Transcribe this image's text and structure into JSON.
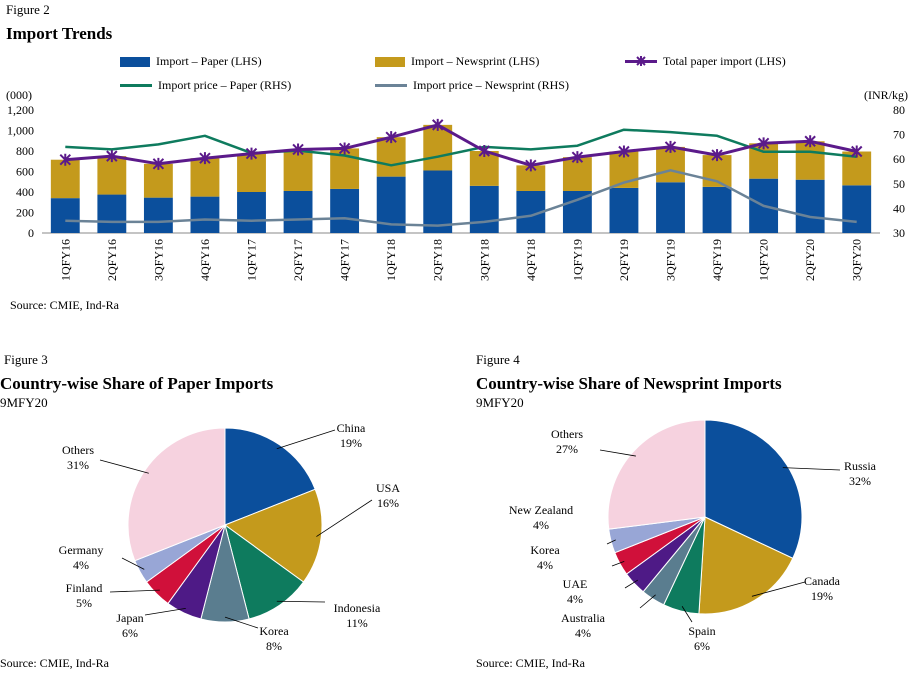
{
  "fig2": {
    "label": "Figure 2",
    "title": "Import Trends",
    "source": "Source: CMIE, Ind-Ra",
    "left_unit": "(000)",
    "right_unit": "(INR/kg)",
    "legend": {
      "paper": "Import – Paper (LHS)",
      "newsprint": "Import – Newsprint (LHS)",
      "total": "Total paper import (LHS)",
      "price_paper": "Import price – Paper (RHS)",
      "price_newsprint": "Import price – Newsprint (RHS)"
    }
  },
  "fig3": {
    "label": "Figure 3",
    "title": "Country-wise Share of Paper Imports",
    "subtitle": "9MFY20",
    "source": "Source: CMIE, Ind-Ra"
  },
  "fig4": {
    "label": "Figure 4",
    "title": "Country-wise Share of Newsprint Imports",
    "subtitle": "9MFY20",
    "source": "Source: CMIE, Ind-Ra"
  },
  "colors": {
    "paper": "#0b4f9c",
    "newsprint": "#c49a1c",
    "total": "#5b1a8a",
    "price_paper": "#0e7b5e",
    "price_newsprint": "#6b8397"
  },
  "chart_data": [
    {
      "type": "bar",
      "stacked": true,
      "categories": [
        "1QFY16",
        "2QFY16",
        "3QFY16",
        "4QFY16",
        "1QFY17",
        "2QFY17",
        "4QFY17",
        "1QFY18",
        "2QFY18",
        "3QFY18",
        "4QFY18",
        "1QFY19",
        "2QFY19",
        "3QFY19",
        "4QFY19",
        "1QFY20",
        "2QFY20",
        "3QFY20"
      ],
      "y_left": {
        "ticks": [
          "0",
          "200",
          "400",
          "600",
          "800",
          "1,000",
          "1,200"
        ],
        "range": [
          0,
          1200
        ]
      },
      "y_right": {
        "ticks": [
          "30",
          "40",
          "50",
          "60",
          "70",
          "80"
        ],
        "range": [
          30,
          80
        ]
      },
      "series": [
        {
          "name": "Import – Paper (LHS)",
          "kind": "bar",
          "axis": "left",
          "values": [
            340,
            375,
            345,
            355,
            400,
            410,
            430,
            550,
            610,
            460,
            410,
            410,
            440,
            495,
            450,
            530,
            520,
            465
          ]
        },
        {
          "name": "Import – Newsprint (LHS)",
          "kind": "bar",
          "axis": "left",
          "values": [
            375,
            375,
            330,
            375,
            375,
            405,
            395,
            385,
            445,
            340,
            250,
            330,
            355,
            345,
            310,
            345,
            375,
            330
          ]
        },
        {
          "name": "Total paper import (LHS)",
          "kind": "line-marker",
          "axis": "left",
          "values": [
            715,
            750,
            675,
            730,
            775,
            815,
            825,
            935,
            1055,
            800,
            660,
            740,
            795,
            840,
            760,
            875,
            895,
            795
          ]
        },
        {
          "name": "Import price – Paper (RHS)",
          "kind": "line",
          "axis": "right",
          "values": [
            65,
            64,
            66,
            69.5,
            62.5,
            63.5,
            61.5,
            57.5,
            61,
            65,
            64,
            65.5,
            72,
            71,
            69.5,
            63,
            63,
            61
          ]
        },
        {
          "name": "Import price – Newsprint (RHS)",
          "kind": "line",
          "axis": "right",
          "values": [
            35,
            34.5,
            34.5,
            35.5,
            35,
            35.5,
            36,
            33.5,
            33,
            34.5,
            37,
            43.5,
            50.5,
            55.5,
            51,
            41,
            36.5,
            34.5
          ]
        }
      ]
    },
    {
      "type": "pie",
      "title": "Country-wise Share of Paper Imports",
      "slices": [
        {
          "label": "China",
          "value": 19,
          "display": "19%",
          "color": "#0b4f9c"
        },
        {
          "label": "USA",
          "value": 16,
          "display": "16%",
          "color": "#c49a1c"
        },
        {
          "label": "Indonesia",
          "value": 11,
          "display": "11%",
          "color": "#0e7b5e"
        },
        {
          "label": "Korea",
          "value": 8,
          "display": "8%",
          "color": "#5a7d8f"
        },
        {
          "label": "Japan",
          "value": 6,
          "display": "6%",
          "color": "#4e1a86"
        },
        {
          "label": "Finland",
          "value": 5,
          "display": "5%",
          "color": "#d0103a"
        },
        {
          "label": "Germany",
          "value": 4,
          "display": "4%",
          "color": "#98a6d6"
        },
        {
          "label": "Others",
          "value": 31,
          "display": "31%",
          "color": "#f6d2df"
        }
      ]
    },
    {
      "type": "pie",
      "title": "Country-wise Share of Newsprint Imports",
      "slices": [
        {
          "label": "Russia",
          "value": 32,
          "display": "32%",
          "color": "#0b4f9c"
        },
        {
          "label": "Canada",
          "value": 19,
          "display": "19%",
          "color": "#c49a1c"
        },
        {
          "label": "Spain",
          "value": 6,
          "display": "6%",
          "color": "#0e7b5e"
        },
        {
          "label": "Australia",
          "value": 4,
          "display": "4%",
          "color": "#5a7d8f"
        },
        {
          "label": "UAE",
          "value": 4,
          "display": "4%",
          "color": "#4e1a86"
        },
        {
          "label": "Korea",
          "value": 4,
          "display": "4%",
          "color": "#d0103a"
        },
        {
          "label": "New Zealand",
          "value": 4,
          "display": "4%",
          "color": "#98a6d6"
        },
        {
          "label": "Others",
          "value": 27,
          "display": "27%",
          "color": "#f6d2df"
        }
      ]
    }
  ]
}
